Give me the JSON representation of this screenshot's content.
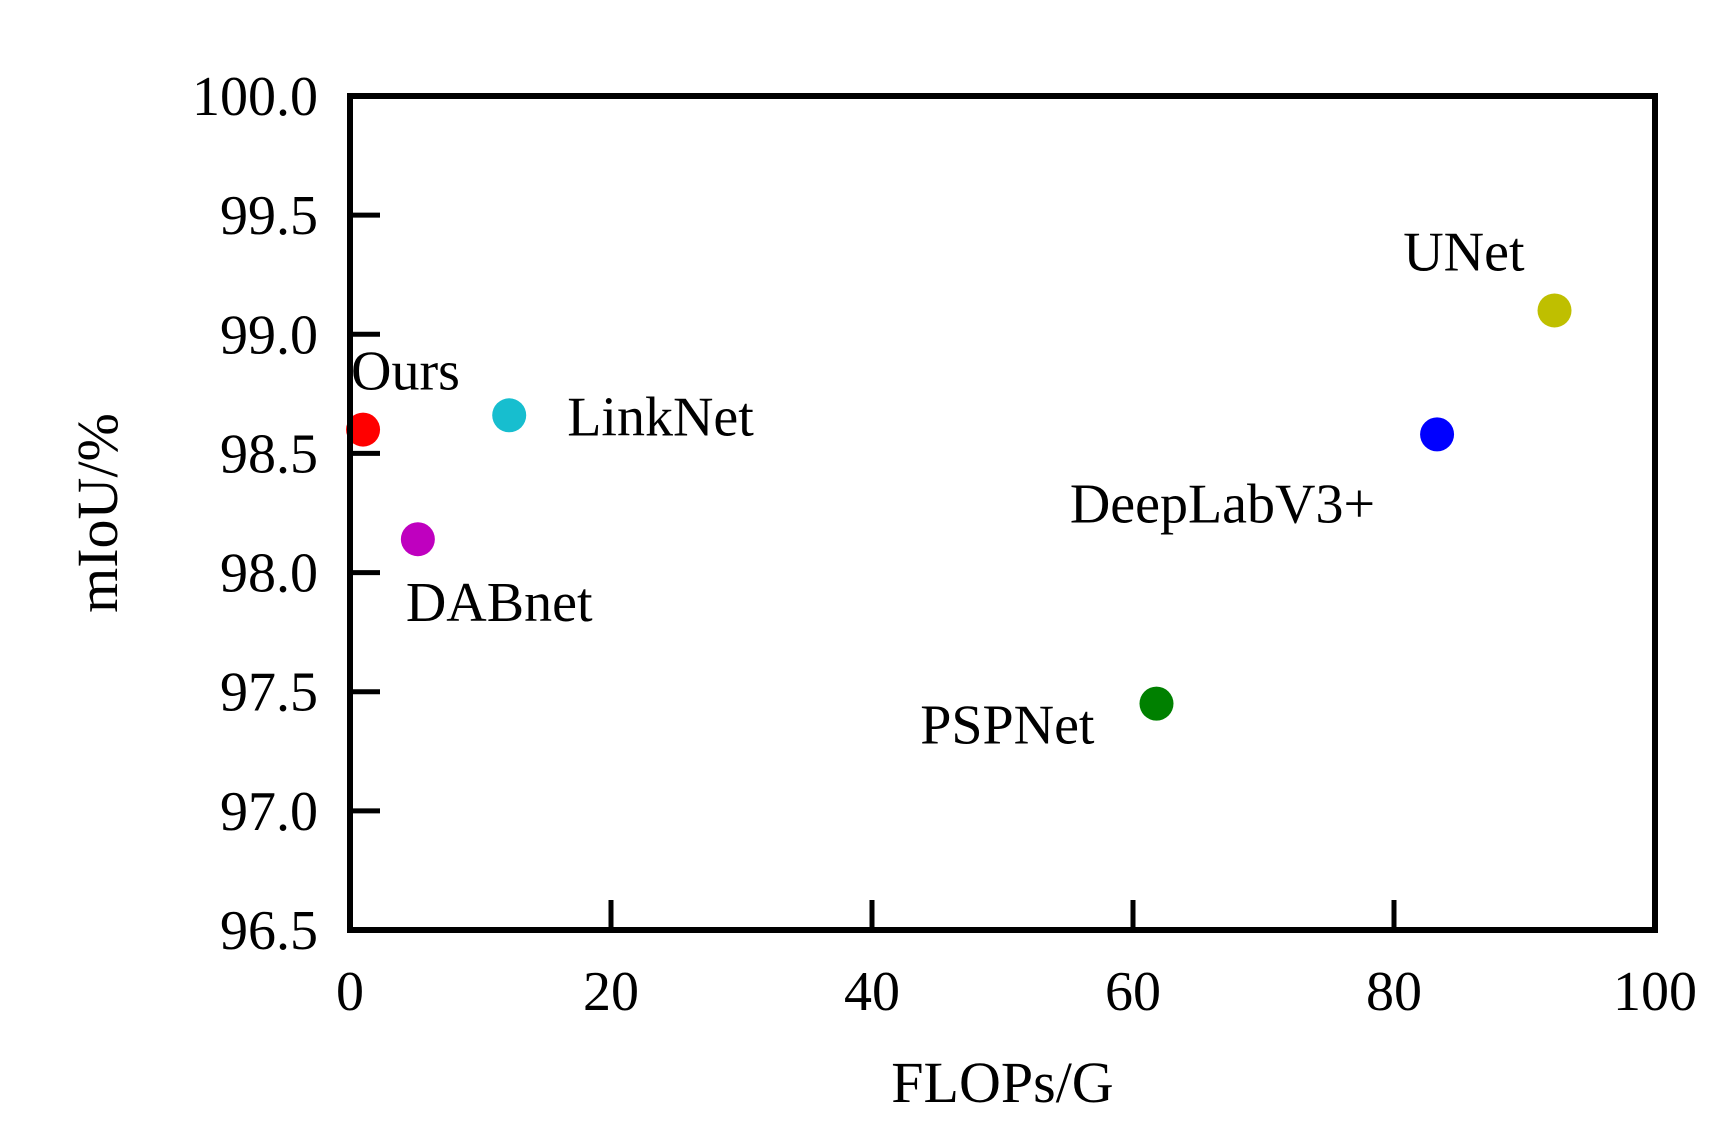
{
  "chart_data": {
    "type": "scatter",
    "title": "",
    "xlabel": "FLOPs/G",
    "ylabel": "mIoU/%",
    "xlim": [
      0,
      100
    ],
    "ylim": [
      96.5,
      100.0
    ],
    "x_ticks": [
      0,
      20,
      40,
      60,
      80,
      100
    ],
    "x_tick_labels": [
      "0",
      "20",
      "40",
      "60",
      "80",
      "100"
    ],
    "y_ticks": [
      96.5,
      97.0,
      97.5,
      98.0,
      98.5,
      99.0,
      99.5,
      100.0
    ],
    "y_tick_labels": [
      "96.5",
      "97.0",
      "97.5",
      "98.0",
      "98.5",
      "99.0",
      "99.5",
      "100.0"
    ],
    "grid": false,
    "points": [
      {
        "label": "Ours",
        "x": 1.0,
        "y": 98.6,
        "color": "#ff0000",
        "label_anchor": "above-right"
      },
      {
        "label": "LinkNet",
        "x": 12.2,
        "y": 98.66,
        "color": "#17becf",
        "label_anchor": "right"
      },
      {
        "label": "DABnet",
        "x": 5.2,
        "y": 98.14,
        "color": "#bf00bf",
        "label_anchor": "below-right"
      },
      {
        "label": "PSPNet",
        "x": 61.8,
        "y": 97.45,
        "color": "#008000",
        "label_anchor": "below-left"
      },
      {
        "label": "DeepLabV3+",
        "x": 83.3,
        "y": 98.58,
        "color": "#0000ff",
        "label_anchor": "below-left"
      },
      {
        "label": "UNet",
        "x": 92.3,
        "y": 99.1,
        "color": "#bfbf00",
        "label_anchor": "above-left"
      }
    ]
  }
}
